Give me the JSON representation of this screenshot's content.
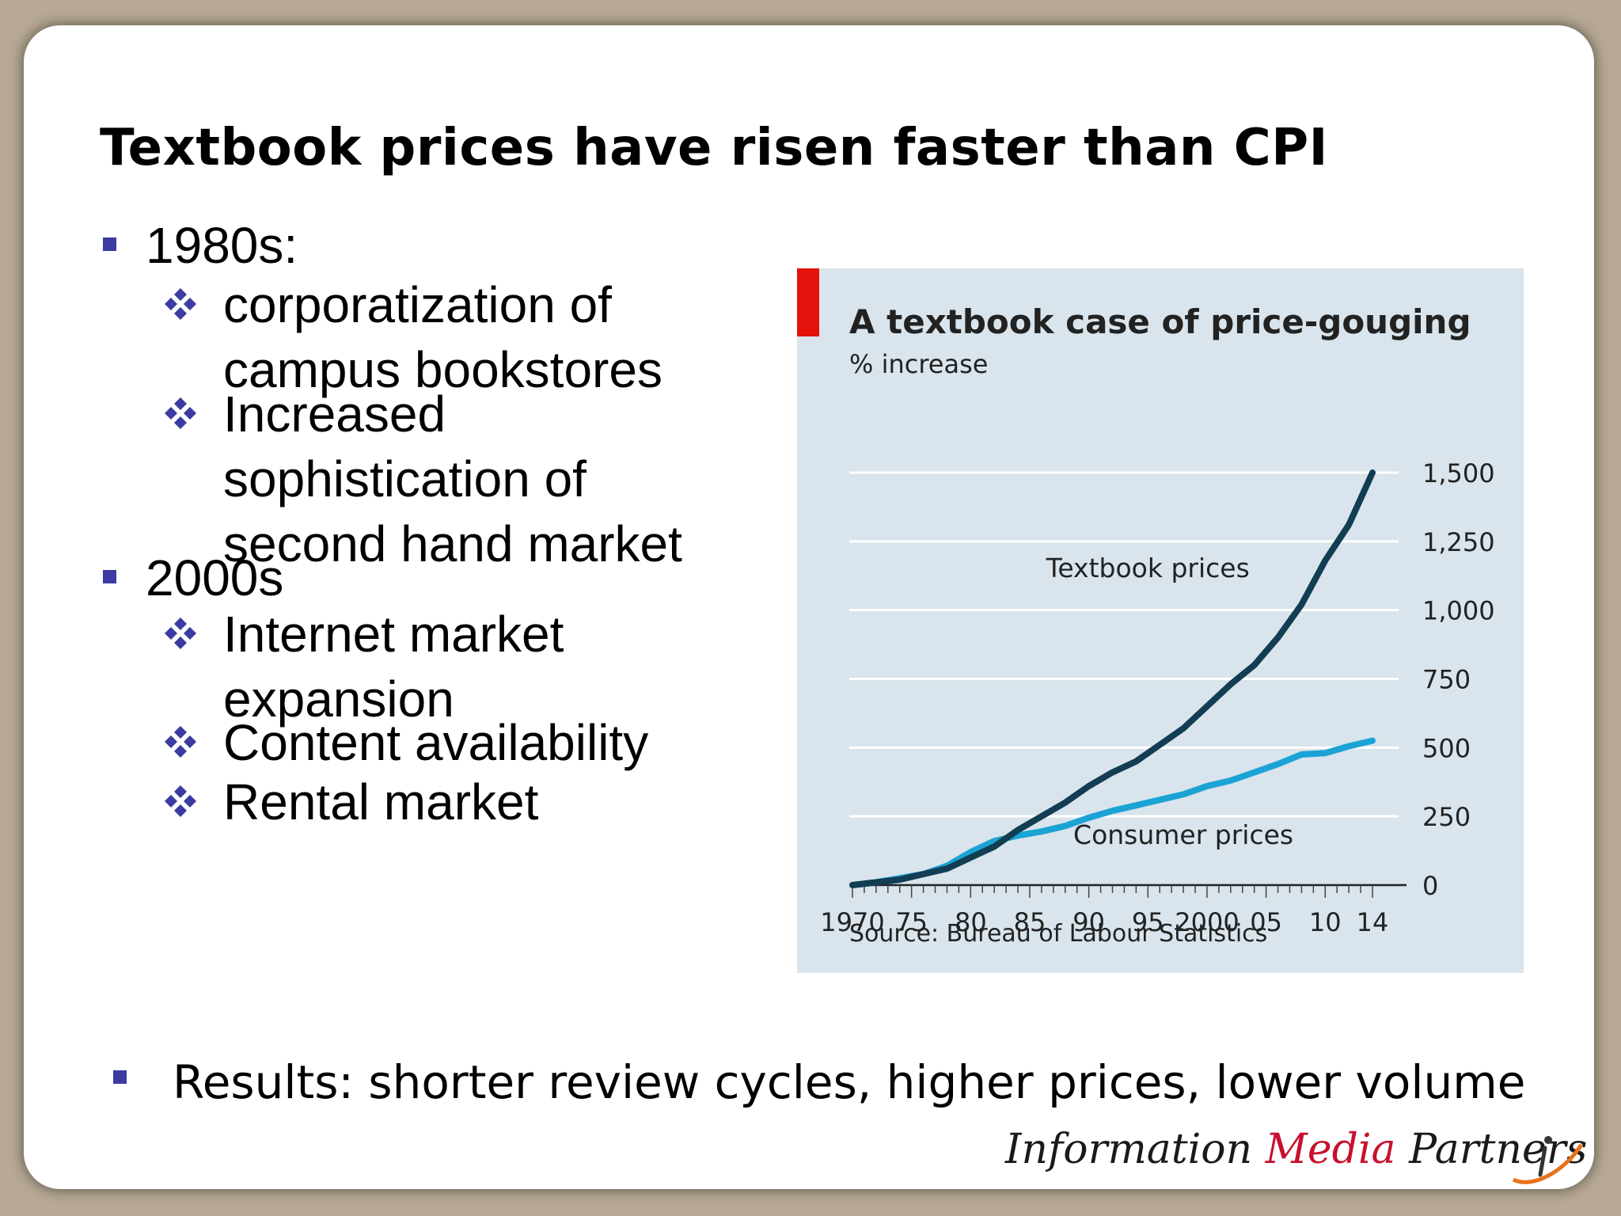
{
  "slide": {
    "title": "Textbook prices have risen faster than CPI",
    "bullets": [
      {
        "text": "1980s:",
        "subs": [
          {
            "lines": [
              "corporatization of",
              "campus bookstores"
            ]
          },
          {
            "lines": [
              "Increased",
              "sophistication of",
              "second hand market"
            ]
          }
        ]
      },
      {
        "text": "2000s",
        "subs": [
          {
            "lines": [
              "Internet market",
              "expansion"
            ]
          },
          {
            "lines": [
              "Content availability"
            ]
          },
          {
            "lines": [
              "Rental market"
            ]
          }
        ]
      }
    ],
    "result": "Results: shorter review cycles, higher prices, lower volume",
    "brand": {
      "part1": "Information ",
      "part2": "Media",
      "part3": " Partners"
    }
  },
  "colors": {
    "accent_red": "#e3120b",
    "chart_bg": "#d9e4ec",
    "textbook_line": "#123d52",
    "consumer_line": "#1ba3d6",
    "bullet_blue": "#3b3ba2"
  },
  "chart_data": {
    "type": "line",
    "title": "A textbook case of price-gouging",
    "subtitle": "% increase",
    "source": "Source: Bureau of Labour Statistics",
    "xlim": [
      1970,
      2014
    ],
    "ylim": [
      0,
      1500
    ],
    "yticks": [
      0,
      250,
      500,
      750,
      1000,
      1250,
      1500
    ],
    "ytick_labels": [
      "0",
      "250",
      "500",
      "750",
      "1,000",
      "1,250",
      "1,500"
    ],
    "xtick_values": [
      1970,
      1975,
      1980,
      1985,
      1990,
      1995,
      2000,
      2005,
      2010,
      2014
    ],
    "xtick_labels": [
      "1970",
      "75",
      "80",
      "85",
      "90",
      "95",
      "2000",
      "05",
      "10",
      "14"
    ],
    "y_axis_side": "right",
    "grid": true,
    "series": [
      {
        "name": "Textbook prices",
        "x": [
          1970,
          1972,
          1974,
          1976,
          1978,
          1980,
          1982,
          1984,
          1986,
          1988,
          1990,
          1992,
          1994,
          1996,
          1998,
          2000,
          2002,
          2004,
          2006,
          2008,
          2010,
          2012,
          2014
        ],
        "y": [
          0,
          10,
          20,
          40,
          60,
          100,
          140,
          200,
          250,
          300,
          360,
          410,
          450,
          510,
          570,
          650,
          730,
          800,
          900,
          1020,
          1180,
          1310,
          1500
        ]
      },
      {
        "name": "Consumer prices",
        "x": [
          1970,
          1972,
          1974,
          1976,
          1978,
          1980,
          1982,
          1984,
          1986,
          1988,
          1990,
          1992,
          1994,
          1996,
          1998,
          2000,
          2002,
          2004,
          2006,
          2008,
          2010,
          2012,
          2014
        ],
        "y": [
          0,
          10,
          25,
          40,
          70,
          120,
          160,
          180,
          195,
          215,
          245,
          270,
          290,
          310,
          330,
          360,
          380,
          410,
          440,
          475,
          480,
          505,
          525
        ]
      }
    ],
    "annotations": [
      {
        "text": "Textbook prices",
        "x": 1995,
        "y": 1120
      },
      {
        "text": "Consumer prices",
        "x": 1998,
        "y": 150
      }
    ]
  }
}
